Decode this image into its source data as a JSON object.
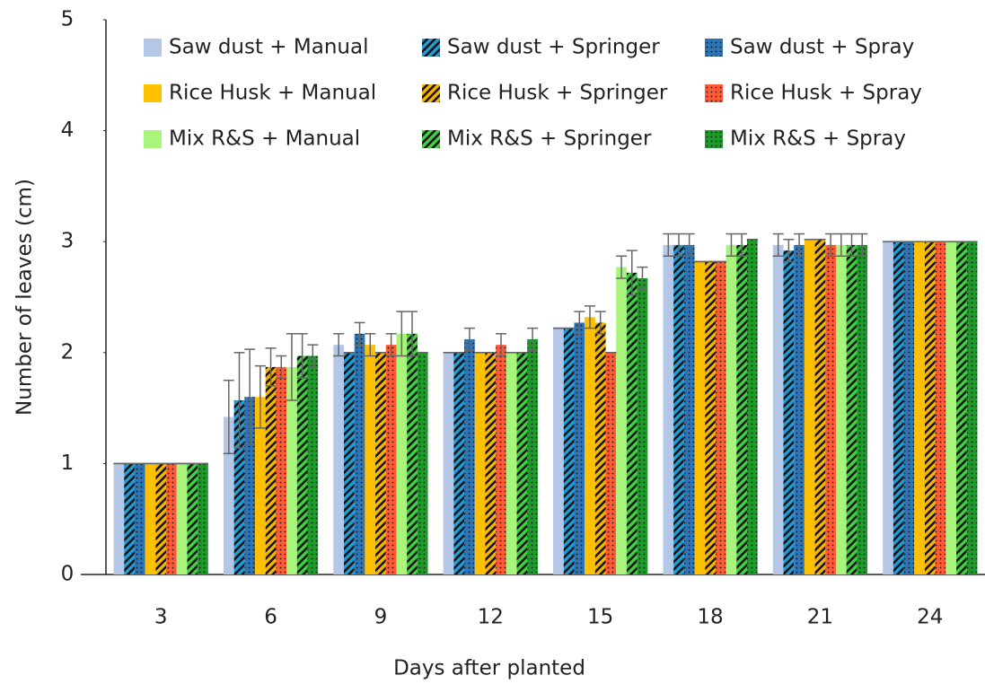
{
  "chart_data": {
    "type": "bar",
    "x_label": "Days after planted",
    "y_label": "Number of leaves (cm)",
    "categories": [
      "3",
      "6",
      "9",
      "12",
      "15",
      "18",
      "21",
      "24"
    ],
    "ylim": [
      0,
      5
    ],
    "yticks": [
      0,
      1,
      2,
      3,
      4,
      5
    ],
    "grid": false,
    "series": [
      {
        "name": "Saw dust + Manual",
        "color": "#b4c7e7",
        "pattern": "solid",
        "values": [
          1,
          1.42,
          2.07,
          2.0,
          2.22,
          2.97,
          2.97,
          3
        ],
        "errors": [
          0,
          0.33,
          0.1,
          0,
          0,
          0.1,
          0.1,
          0
        ]
      },
      {
        "name": "Saw dust + Springer",
        "color": "#1f9bd6",
        "pattern": "stripes",
        "values": [
          1,
          1.57,
          2.0,
          2.0,
          2.22,
          2.97,
          2.92,
          3
        ],
        "errors": [
          0,
          0.43,
          0,
          0,
          0,
          0.1,
          0.1,
          0
        ]
      },
      {
        "name": "Saw dust + Spray",
        "color": "#2e75b6",
        "pattern": "dots",
        "values": [
          1,
          1.6,
          2.17,
          2.12,
          2.27,
          2.97,
          2.97,
          3
        ],
        "errors": [
          0,
          0.43,
          0.1,
          0.1,
          0.1,
          0.1,
          0.1,
          0
        ]
      },
      {
        "name": "Rice Husk + Manual",
        "color": "#ffc000",
        "pattern": "solid",
        "values": [
          1,
          1.6,
          2.07,
          2.0,
          2.32,
          2.82,
          3.02,
          3
        ],
        "errors": [
          0,
          0.28,
          0.1,
          0,
          0.1,
          0,
          0,
          0
        ]
      },
      {
        "name": "Rice Husk + Springer",
        "color": "#f5b400",
        "pattern": "stripes",
        "values": [
          1,
          1.87,
          2.0,
          2.0,
          2.27,
          2.82,
          3.02,
          3
        ],
        "errors": [
          0,
          0.17,
          0,
          0,
          0.1,
          0,
          0,
          0
        ]
      },
      {
        "name": "Rice Husk + Spray",
        "color": "#ff5a36",
        "pattern": "dots",
        "values": [
          1,
          1.87,
          2.07,
          2.07,
          2.0,
          2.82,
          2.97,
          3
        ],
        "errors": [
          0,
          0.1,
          0.1,
          0.1,
          0,
          0,
          0.1,
          0
        ]
      },
      {
        "name": "Mix R&S + Manual",
        "color": "#a9f57c",
        "pattern": "solid",
        "values": [
          1,
          1.87,
          2.17,
          2.0,
          2.77,
          2.97,
          2.97,
          3
        ],
        "errors": [
          0,
          0.3,
          0.2,
          0,
          0.1,
          0.1,
          0.1,
          0
        ]
      },
      {
        "name": "Mix R&S + Springer",
        "color": "#3fcf3f",
        "pattern": "stripes",
        "values": [
          1,
          1.97,
          2.17,
          2.0,
          2.72,
          2.97,
          2.97,
          3
        ],
        "errors": [
          0,
          0.2,
          0.2,
          0,
          0.2,
          0.1,
          0.1,
          0
        ]
      },
      {
        "name": "Mix R&S + Spray",
        "color": "#1e9a2a",
        "pattern": "dots",
        "values": [
          1,
          1.97,
          2.0,
          2.12,
          2.67,
          3.02,
          2.97,
          3
        ],
        "errors": [
          0,
          0.1,
          0,
          0.1,
          0.1,
          0,
          0.1,
          0
        ]
      }
    ]
  }
}
